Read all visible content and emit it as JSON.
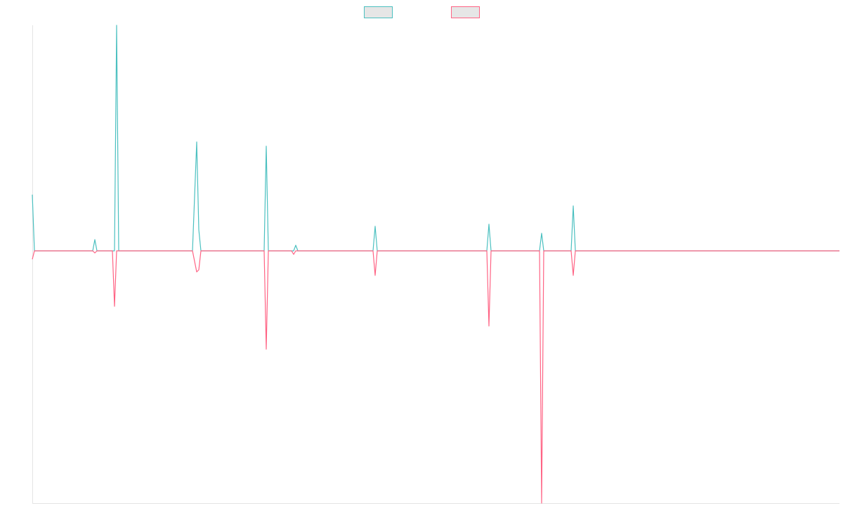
{
  "chart_data": {
    "type": "line",
    "x": [
      0,
      3,
      86,
      89,
      92,
      114,
      117,
      120,
      123,
      228,
      234,
      237,
      240,
      330,
      333,
      336,
      369,
      372,
      375,
      378,
      485,
      488,
      491,
      647,
      650,
      653,
      722,
      725,
      728,
      767,
      770,
      773,
      1149
    ],
    "xlim": [
      0,
      1149
    ],
    "ylim": [
      -359,
      321
    ],
    "legend": "top",
    "series": [
      {
        "color": "#4bc0c0",
        "values": [
          80,
          0,
          0,
          16,
          0,
          0,
          0,
          321,
          0,
          0,
          155,
          30,
          0,
          0,
          149,
          0,
          0,
          0,
          8,
          0,
          0,
          35,
          0,
          0,
          38,
          0,
          0,
          25,
          0,
          0,
          64,
          0,
          0
        ]
      },
      {
        "color": "#ff6384",
        "values": [
          -12,
          0,
          0,
          -3,
          0,
          0,
          -79,
          0,
          0,
          0,
          -30,
          -27,
          0,
          0,
          -140,
          0,
          0,
          -5,
          0,
          0,
          0,
          -35,
          0,
          0,
          -107,
          0,
          0,
          -359,
          0,
          0,
          -35,
          0,
          0
        ]
      }
    ]
  }
}
